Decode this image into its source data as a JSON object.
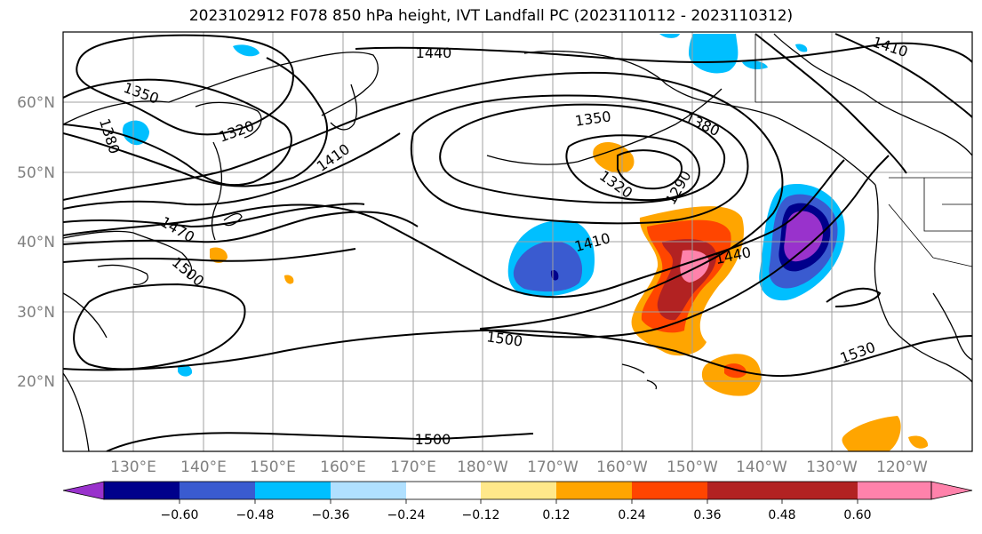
{
  "title": "2023102912 F078 850 hPa height, IVT Landfall PC (2023110112 - 2023110312)",
  "lat_labels": [
    "60°N",
    "50°N",
    "40°N",
    "30°N",
    "20°N"
  ],
  "lon_labels": [
    "130°E",
    "140°E",
    "150°E",
    "160°E",
    "170°E",
    "180°W",
    "170°W",
    "160°W",
    "150°W",
    "140°W",
    "130°W",
    "120°W"
  ],
  "colorbar": {
    "colors": [
      "#9932cc",
      "#00008b",
      "#3a5bd0",
      "#00bfff",
      "#b0e0ff",
      "#ffffff",
      "#ffe88a",
      "#ffa500",
      "#ff4500",
      "#b22222",
      "#ff82ab"
    ],
    "tick_labels": [
      "−0.60",
      "−0.48",
      "−0.36",
      "−0.24",
      "−0.12",
      "0.12",
      "0.24",
      "0.36",
      "0.48",
      "0.60"
    ]
  },
  "contour_labels": [
    "1440",
    "1410",
    "1350",
    "1320",
    "1380",
    "1410",
    "1470",
    "1500",
    "1350",
    "1380",
    "1320",
    "1290",
    "1410",
    "1440",
    "1500",
    "1530",
    "1500"
  ]
}
